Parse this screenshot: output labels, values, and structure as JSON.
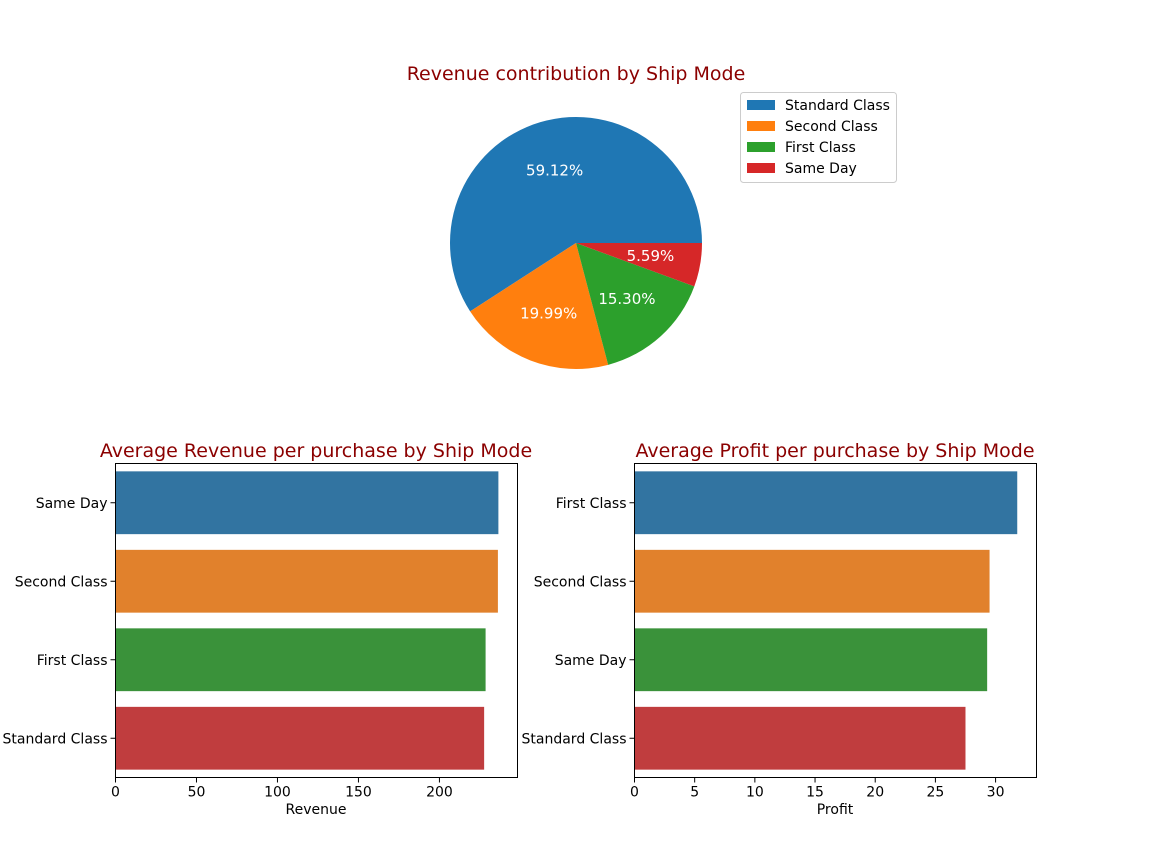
{
  "chart_data": [
    {
      "type": "pie",
      "title": "Revenue contribution by Ship Mode",
      "labels": [
        "Standard Class",
        "Second Class",
        "First Class",
        "Same Day"
      ],
      "values": [
        59.12,
        19.99,
        15.3,
        5.59
      ],
      "value_labels": [
        "59.12%",
        "19.99%",
        "15.30%",
        "5.59%"
      ],
      "colors": [
        "#1f77b4",
        "#ff7f0e",
        "#2ca02c",
        "#d62728"
      ],
      "legend": "right"
    },
    {
      "type": "bar",
      "orientation": "horizontal",
      "title": "Average Revenue per purchase by Ship Mode",
      "categories": [
        "Same Day",
        "Second Class",
        "First Class",
        "Standard Class"
      ],
      "values": [
        236.4,
        236.1,
        228.5,
        227.6
      ],
      "colors": [
        "#3274a1",
        "#e1812c",
        "#3a923a",
        "#c03d3e"
      ],
      "xlabel": "Revenue",
      "ylabel": "",
      "xlim": [
        0,
        248.2
      ],
      "xticks": [
        0,
        50,
        100,
        150,
        200
      ]
    },
    {
      "type": "bar",
      "orientation": "horizontal",
      "title": "Average Profit per purchase by Ship Mode",
      "categories": [
        "First Class",
        "Second Class",
        "Same Day",
        "Standard Class"
      ],
      "values": [
        31.8,
        29.5,
        29.3,
        27.5
      ],
      "colors": [
        "#3274a1",
        "#e1812c",
        "#3a923a",
        "#c03d3e"
      ],
      "xlabel": "Profit",
      "ylabel": "",
      "xlim": [
        0,
        33.4
      ],
      "xticks": [
        0,
        5,
        10,
        15,
        20,
        25,
        30
      ]
    }
  ]
}
